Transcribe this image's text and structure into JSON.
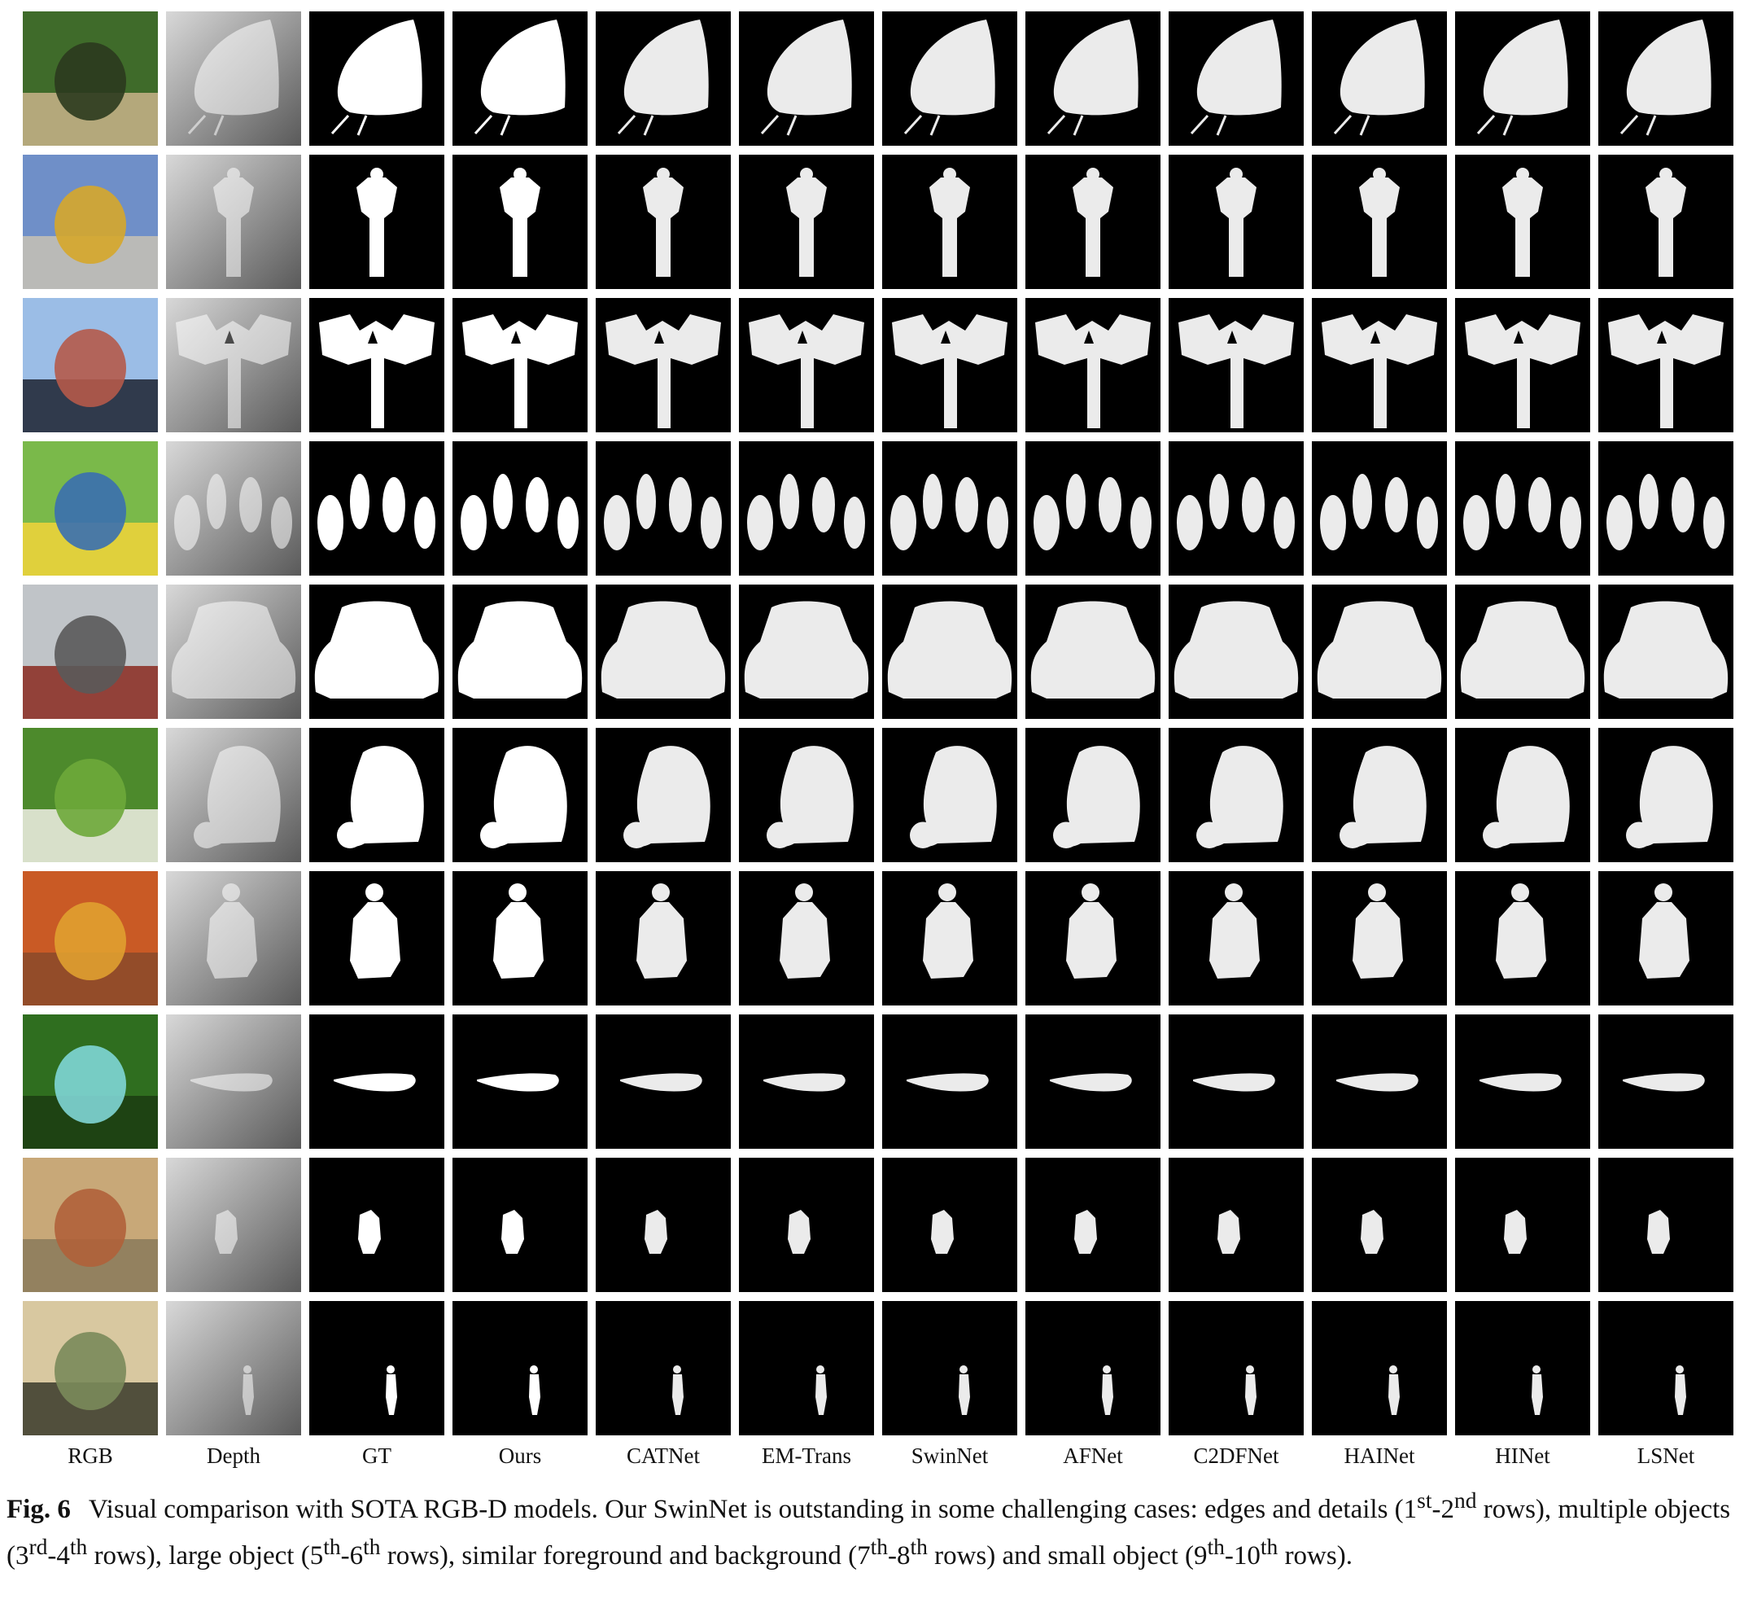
{
  "columns": [
    "RGB",
    "Depth",
    "GT",
    "Ours",
    "CATNet",
    "EM-Trans",
    "SwinNet",
    "AFNet",
    "C2DFNet",
    "HAINet",
    "HINet",
    "LSNet"
  ],
  "rows": [
    {
      "scene": "butterfly-on-leaf",
      "rgb_colors": [
        "#3f6b2a",
        "#c9b38a",
        "#2b3a1e"
      ],
      "mask": "butterfly"
    },
    {
      "scene": "ornate-street-lamp",
      "rgb_colors": [
        "#6f8fc8",
        "#c8c2b4",
        "#d6a72a"
      ],
      "mask": "lamp"
    },
    {
      "scene": "triple-lamp-post",
      "rgb_colors": [
        "#9bbde6",
        "#1d2330",
        "#b55a4a"
      ],
      "mask": "triple-lamp"
    },
    {
      "scene": "minions-on-grass",
      "rgb_colors": [
        "#7ab94a",
        "#f2d33a",
        "#3a6fb0"
      ],
      "mask": "minions"
    },
    {
      "scene": "red-vintage-car",
      "rgb_colors": [
        "#c0c4c8",
        "#8a2a20",
        "#5a5a5a"
      ],
      "mask": "car"
    },
    {
      "scene": "plush-sheep-on-grass",
      "rgb_colors": [
        "#4d8a2c",
        "#f1eee6",
        "#6ea83a"
      ],
      "mask": "sheep"
    },
    {
      "scene": "man-in-sand",
      "rgb_colors": [
        "#c95a25",
        "#8a4a2a",
        "#e0a030"
      ],
      "mask": "man"
    },
    {
      "scene": "blue-butterfly-on-leaf",
      "rgb_colors": [
        "#2f6e1f",
        "#1b3c12",
        "#7fd6d6"
      ],
      "mask": "flat-butterfly"
    },
    {
      "scene": "small-figure-on-ground",
      "rgb_colors": [
        "#c8a878",
        "#8a7a5a",
        "#b0603a"
      ],
      "mask": "small-figure"
    },
    {
      "scene": "silhouette-in-field",
      "rgb_colors": [
        "#d8c8a0",
        "#3a3a2a",
        "#7a8a5a"
      ],
      "mask": "thin-person"
    }
  ],
  "caption": {
    "label": "Fig. 6",
    "text_1": "Visual comparison with SOTA RGB-D models.  Our SwinNet is outstanding in some challenging cases: edges and details (1",
    "sup_1": "st",
    "text_2": "-2",
    "sup_2": "nd",
    "text_3": " rows), multiple objects (3",
    "sup_3": "rd",
    "text_4": "-4",
    "sup_4": "th",
    "text_5": " rows), large object (5",
    "sup_5": "th",
    "text_6": "-6",
    "sup_6": "th",
    "text_7": " rows), similar foreground and background (7",
    "sup_7": "th",
    "text_8": "-8",
    "sup_8": "th",
    "text_9": " rows) and small object (9",
    "sup_9": "th",
    "text_10": "-10",
    "sup_10": "th",
    "text_11": " rows)."
  }
}
